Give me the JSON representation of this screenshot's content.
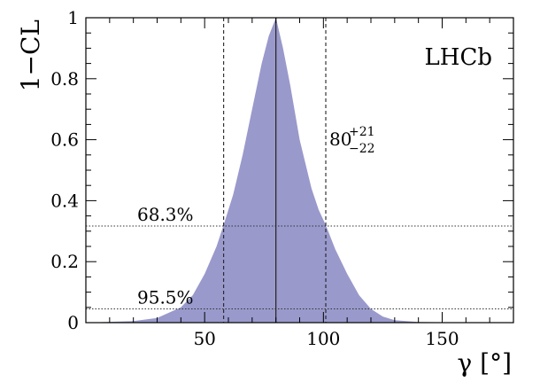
{
  "chart_data": {
    "type": "area",
    "ylabel": "1−CL",
    "xlabel": "γ [°]",
    "xlim": [
      0,
      180
    ],
    "ylim": [
      0,
      1
    ],
    "xticks": [
      50,
      100,
      150
    ],
    "yticks": [
      0,
      0.2,
      0.4,
      0.6,
      0.8,
      1
    ],
    "ytick_labels": [
      "0",
      "0.2",
      "0.4",
      "0.6",
      "0.8",
      "1"
    ],
    "fill_color": "#9999cc",
    "curve": {
      "x": [
        0,
        20,
        30,
        40,
        45,
        50,
        55,
        58,
        62,
        66,
        70,
        74,
        77,
        80,
        83,
        86,
        90,
        95,
        98,
        101,
        105,
        110,
        115,
        120,
        125,
        130,
        140,
        160,
        180
      ],
      "y": [
        0.0,
        0.005,
        0.015,
        0.05,
        0.09,
        0.16,
        0.25,
        0.32,
        0.42,
        0.55,
        0.7,
        0.85,
        0.94,
        1.0,
        0.9,
        0.78,
        0.6,
        0.44,
        0.37,
        0.32,
        0.24,
        0.16,
        0.09,
        0.045,
        0.02,
        0.008,
        0.002,
        0.0,
        0.0
      ]
    },
    "central_value": 80,
    "interval_68": [
      58,
      101
    ],
    "cl_lines": [
      {
        "label": "68.3%",
        "y": 0.317
      },
      {
        "label": "95.5%",
        "y": 0.045
      }
    ],
    "result_annotation": {
      "value": "80",
      "plus": "+21",
      "minus": "−22"
    },
    "experiment_label": "LHCb"
  }
}
